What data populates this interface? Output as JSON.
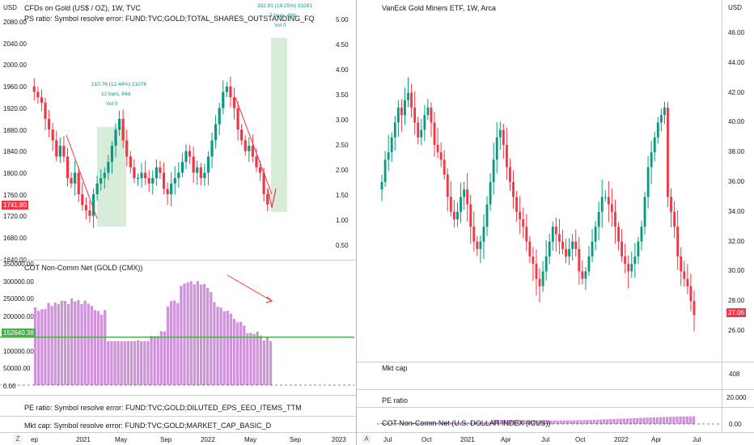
{
  "left_chart": {
    "title": "CFDs on Gold (US$ / OZ), 1W, TVC",
    "ps_ratio_text": "PS ratio: Symbol resolve error: FUND:TVC;GOLD;TOTAL_SHARES_OUTSTANDING_FQ",
    "price_axis": [
      "2080.00",
      "2040.00",
      "2000.00",
      "1960.00",
      "1920.00",
      "1880.00",
      "1840.00",
      "1800.00",
      "1760.00",
      "1720.00",
      "1680.00",
      "1640.00"
    ],
    "ratio_axis": [
      "5.00",
      "4.50",
      "4.00",
      "3.50",
      "3.00",
      "2.50",
      "2.00",
      "1.50",
      "1.00",
      "0.50"
    ],
    "last_price_tag": "1741.80",
    "measure_1": {
      "line1": "210.76 (12.44%) 21076",
      "line2": "12 bars, 84d",
      "line3": "Vol 0"
    },
    "measure_2": {
      "line1": "332.91 (19.25%) 33291",
      "line2": "7 bars, 49d",
      "line3": "Vol 0"
    },
    "cot_title": "COT Non-Comm Net (GOLD (CMX))",
    "cot_axis": [
      "350000.00",
      "300000.00",
      "250000.00",
      "200000.00",
      "150000.00",
      "100000.00",
      "50000.00",
      "0.00"
    ],
    "cot_last_tag": "152640.38",
    "pe_ratio_text": "PE ratio: Symbol resolve error: FUND:TVC;GOLD;DILUTED_EPS_EEO_ITEMS_TTM",
    "mkt_cap_text": "Mkt cap: Symbol resolve error: FUND:TVC;GOLD;MARKET_CAP_BASIC_D",
    "time_axis": [
      "ep",
      "2021",
      "May",
      "Sep",
      "2022",
      "May",
      "Sep",
      "2023"
    ],
    "axis_button": "Z"
  },
  "right_chart": {
    "title": "VanEck Gold Miners ETF, 1W, Arca",
    "currency": "USD",
    "price_axis": [
      "46.00",
      "44.00",
      "42.00",
      "40.00",
      "38.00",
      "36.00",
      "34.00",
      "32.00",
      "30.00",
      "28.00",
      "26.00"
    ],
    "last_price_tag": "27.06",
    "mkt_cap_label": "Mkt cap",
    "mkt_cap_axis": "408",
    "pe_label": "PE ratio",
    "pe_axis": "20.000",
    "cot_label": "COT Non-Comm Net (U.S. DOLLAR INDEX (ICUS))",
    "cot_axis": "0.00",
    "time_axis": [
      "Jul",
      "Oct",
      "2021",
      "Apr",
      "Jul",
      "Oct",
      "2022",
      "Apr",
      "Jul"
    ],
    "axis_button": "A"
  },
  "left_currency": "USD",
  "colors": {
    "up": "#089981",
    "down": "#f23645",
    "cot": "#ce93d8",
    "cot_line": "#4caf50",
    "measure_fill": "#c8e6c9"
  }
}
